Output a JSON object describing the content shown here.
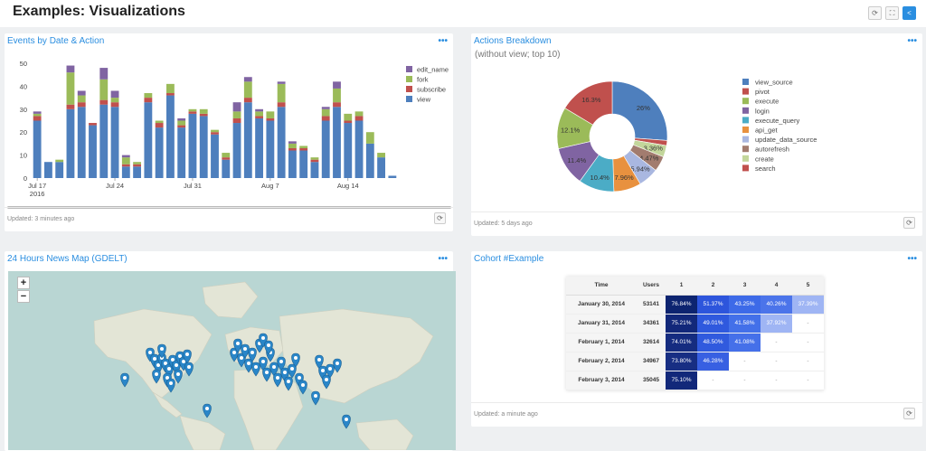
{
  "page": {
    "title": "Examples: Visualizations",
    "buttons": [
      {
        "icon": "refresh-icon",
        "glyph": "⟳"
      },
      {
        "icon": "fullscreen-icon",
        "glyph": "⛶"
      },
      {
        "icon": "share-icon",
        "glyph": "<"
      }
    ]
  },
  "widgets": {
    "events": {
      "title": "Events by Date & Action",
      "menu": "•••",
      "updated": "Updated: 3 minutes ago",
      "refresh_icon": "⟳"
    },
    "actions": {
      "title": "Actions Breakdown",
      "subtitle": "(without view; top 10)",
      "menu": "•••",
      "updated": "Updated: 5 days ago",
      "refresh_icon": "⟳"
    },
    "map": {
      "title": "24 Hours News Map (GDELT)",
      "menu": "•••",
      "zoom_in": "+",
      "zoom_out": "−"
    },
    "cohort": {
      "title": "Cohort #Example",
      "menu": "•••",
      "updated": "Updated: a minute ago",
      "refresh_icon": "⟳",
      "headers": [
        "Time",
        "Users",
        "1",
        "2",
        "3",
        "4",
        "5"
      ],
      "rows": [
        {
          "time": "January 30, 2014",
          "users": "53141",
          "cells": [
            {
              "text": "76.84%",
              "color": "#0d2470",
              "fg": "#ffffff"
            },
            {
              "text": "51.37%",
              "color": "#2d55dc",
              "fg": "#ffffff"
            },
            {
              "text": "43.25%",
              "color": "#3d6ae8",
              "fg": "#ffffff"
            },
            {
              "text": "40.26%",
              "color": "#4b74ea",
              "fg": "#ffffff"
            },
            {
              "text": "37.39%",
              "color": "#9fb5f4",
              "fg": "#ffffff"
            }
          ]
        },
        {
          "time": "January 31, 2014",
          "users": "34361",
          "cells": [
            {
              "text": "75.21%",
              "color": "#12287a",
              "fg": "#ffffff"
            },
            {
              "text": "49.01%",
              "color": "#2f59de",
              "fg": "#ffffff"
            },
            {
              "text": "41.58%",
              "color": "#4370e9",
              "fg": "#ffffff"
            },
            {
              "text": "37.92%",
              "color": "#9fb5f4",
              "fg": "#ffffff"
            },
            {
              "text": "-",
              "color": "#ffffff",
              "fg": "#999999"
            }
          ]
        },
        {
          "time": "February 1, 2014",
          "users": "32614",
          "cells": [
            {
              "text": "74.01%",
              "color": "#152c80",
              "fg": "#ffffff"
            },
            {
              "text": "48.50%",
              "color": "#305ade",
              "fg": "#ffffff"
            },
            {
              "text": "41.08%",
              "color": "#4570e9",
              "fg": "#ffffff"
            },
            {
              "text": "-",
              "color": "#ffffff",
              "fg": "#999999"
            },
            {
              "text": "-",
              "color": "#ffffff",
              "fg": "#999999"
            }
          ]
        },
        {
          "time": "February 2, 2014",
          "users": "34967",
          "cells": [
            {
              "text": "73.80%",
              "color": "#172e83",
              "fg": "#ffffff"
            },
            {
              "text": "46.28%",
              "color": "#3860e2",
              "fg": "#ffffff"
            },
            {
              "text": "-",
              "color": "#ffffff",
              "fg": "#999999"
            },
            {
              "text": "-",
              "color": "#ffffff",
              "fg": "#999999"
            },
            {
              "text": "-",
              "color": "#ffffff",
              "fg": "#999999"
            }
          ]
        },
        {
          "time": "February 3, 2014",
          "users": "35045",
          "cells": [
            {
              "text": "75.10%",
              "color": "#12287a",
              "fg": "#ffffff"
            },
            {
              "text": "-",
              "color": "#ffffff",
              "fg": "#999999"
            },
            {
              "text": "-",
              "color": "#ffffff",
              "fg": "#999999"
            },
            {
              "text": "-",
              "color": "#ffffff",
              "fg": "#999999"
            },
            {
              "text": "-",
              "color": "#ffffff",
              "fg": "#999999"
            }
          ]
        }
      ]
    }
  },
  "chart_data": [
    {
      "type": "bar",
      "stacked": true,
      "title": "Events by Date & Action",
      "x_ticks": [
        {
          "index": 0,
          "label": "Jul 17",
          "sub": "2016"
        },
        {
          "index": 7,
          "label": "Jul 24"
        },
        {
          "index": 14,
          "label": "Jul 31"
        },
        {
          "index": 21,
          "label": "Aug 7"
        },
        {
          "index": 28,
          "label": "Aug 14"
        }
      ],
      "yticks": [
        0,
        10,
        20,
        30,
        40,
        50
      ],
      "ylim": [
        0,
        50
      ],
      "legend_position": "right",
      "series": [
        {
          "name": "view",
          "color": "#4e7fbd",
          "values": [
            25,
            7,
            7,
            30,
            31,
            23,
            32,
            31,
            5,
            5,
            33,
            22,
            36,
            22,
            28,
            27,
            19,
            8,
            24,
            33,
            26,
            25,
            31,
            12,
            12,
            7,
            25,
            31,
            24,
            25,
            15,
            9,
            1
          ]
        },
        {
          "name": "subscribe",
          "color": "#c0504d",
          "values": [
            2,
            0,
            0,
            2,
            2,
            1,
            2,
            2,
            1,
            1,
            2,
            2,
            1,
            1,
            1,
            1,
            1,
            1,
            2,
            2,
            1,
            1,
            2,
            1,
            1,
            1,
            2,
            2,
            1,
            2,
            0,
            0,
            0
          ]
        },
        {
          "name": "fork",
          "color": "#9bbb59",
          "values": [
            1,
            0,
            1,
            14,
            3,
            0,
            9,
            2,
            3,
            1,
            2,
            1,
            4,
            2,
            1,
            2,
            1,
            2,
            3,
            7,
            2,
            3,
            8,
            2,
            1,
            1,
            3,
            6,
            3,
            2,
            5,
            2,
            0
          ]
        },
        {
          "name": "edit_name",
          "color": "#8064a2",
          "values": [
            1,
            0,
            0,
            3,
            2,
            0,
            5,
            3,
            1,
            0,
            0,
            0,
            0,
            1,
            0,
            0,
            0,
            0,
            4,
            2,
            1,
            0,
            1,
            1,
            0,
            0,
            1,
            3,
            0,
            0,
            0,
            0,
            0
          ]
        }
      ]
    },
    {
      "type": "pie",
      "donut": true,
      "title": "Actions Breakdown",
      "subtitle": "(without view; top 10)",
      "legend_position": "right",
      "slices": [
        {
          "name": "view_source",
          "value": 26,
          "label": "26%",
          "color": "#4e7fbd"
        },
        {
          "name": "pivot",
          "value": 1.5,
          "label": "",
          "color": "#c0504d"
        },
        {
          "name": "create",
          "value": 3.36,
          "label": "3.36%",
          "color": "#c3d69b"
        },
        {
          "name": "autorefresh",
          "value": 4.47,
          "label": "4.47%",
          "color": "#a27c6f"
        },
        {
          "name": "update_data_source",
          "value": 5.94,
          "label": "5.94%",
          "color": "#a9b7e0"
        },
        {
          "name": "api_get",
          "value": 7.96,
          "label": "7.96%",
          "color": "#e8913f"
        },
        {
          "name": "execute_query",
          "value": 10.4,
          "label": "10.4%",
          "color": "#4bacc6"
        },
        {
          "name": "login",
          "value": 11.4,
          "label": "11.4%",
          "color": "#8064a2"
        },
        {
          "name": "execute",
          "value": 12.1,
          "label": "12.1%",
          "color": "#9bbb59"
        },
        {
          "name": "search",
          "value": 16.3,
          "label": "16.3%",
          "color": "#c0504d"
        }
      ],
      "legend": [
        {
          "name": "view_source",
          "color": "#4e7fbd"
        },
        {
          "name": "pivot",
          "color": "#c0504d"
        },
        {
          "name": "execute",
          "color": "#9bbb59"
        },
        {
          "name": "login",
          "color": "#8064a2"
        },
        {
          "name": "execute_query",
          "color": "#4bacc6"
        },
        {
          "name": "api_get",
          "color": "#e8913f"
        },
        {
          "name": "update_data_source",
          "color": "#a9b7e0"
        },
        {
          "name": "autorefresh",
          "color": "#a27c6f"
        },
        {
          "name": "create",
          "color": "#c3d69b"
        },
        {
          "name": "search",
          "color": "#c0504d"
        }
      ]
    }
  ]
}
